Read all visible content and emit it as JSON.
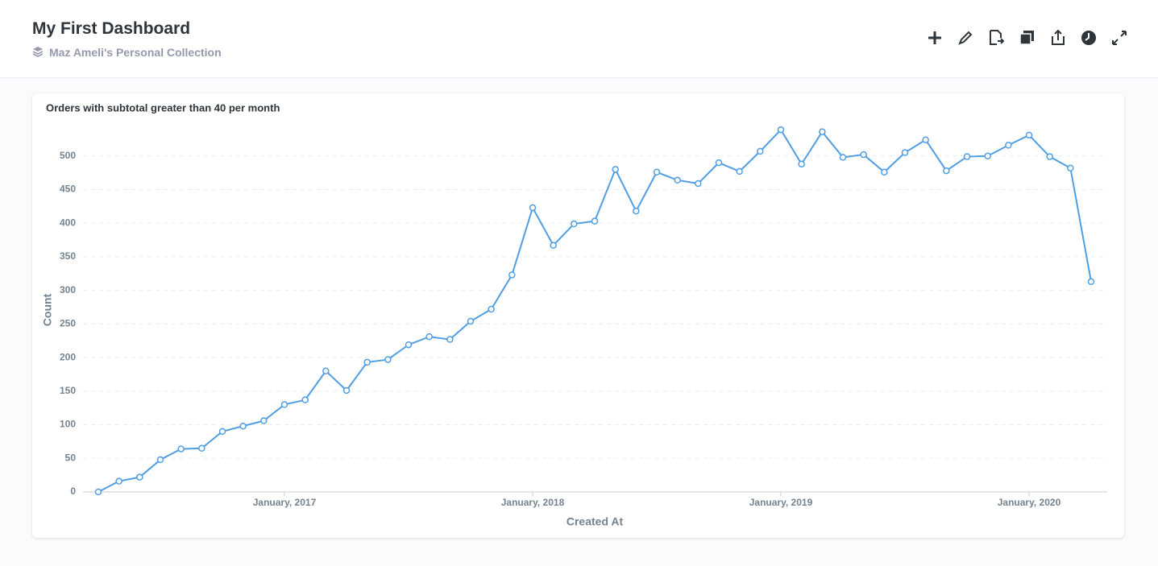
{
  "header": {
    "title": "My First Dashboard",
    "collection": "Maz Ameli's Personal Collection"
  },
  "chart_data": {
    "type": "line",
    "title": "Orders with subtotal greater than 40 per month",
    "x_label": "Created At",
    "y_label": "Count",
    "color": "#509ee3",
    "x": [
      "2016-04",
      "2016-05",
      "2016-06",
      "2016-07",
      "2016-08",
      "2016-09",
      "2016-10",
      "2016-11",
      "2016-12",
      "2017-01",
      "2017-02",
      "2017-03",
      "2017-04",
      "2017-05",
      "2017-06",
      "2017-07",
      "2017-08",
      "2017-09",
      "2017-10",
      "2017-11",
      "2017-12",
      "2018-01",
      "2018-02",
      "2018-03",
      "2018-04",
      "2018-05",
      "2018-06",
      "2018-07",
      "2018-08",
      "2018-09",
      "2018-10",
      "2018-11",
      "2018-12",
      "2019-01",
      "2019-02",
      "2019-03",
      "2019-04",
      "2019-05",
      "2019-06",
      "2019-07",
      "2019-08",
      "2019-09",
      "2019-10",
      "2019-11",
      "2019-12",
      "2020-01",
      "2020-02",
      "2020-03",
      "2020-04"
    ],
    "values": [
      0,
      16,
      22,
      48,
      64,
      65,
      90,
      98,
      106,
      130,
      137,
      180,
      151,
      193,
      197,
      219,
      231,
      227,
      254,
      272,
      323,
      423,
      367,
      399,
      403,
      480,
      418,
      476,
      464,
      459,
      490,
      477,
      507,
      539,
      488,
      536,
      498,
      502,
      476,
      505,
      524,
      478,
      499,
      500,
      516,
      531,
      499,
      482,
      313
    ],
    "xticks": [
      {
        "value": "2017-01",
        "label": "January, 2017"
      },
      {
        "value": "2018-01",
        "label": "January, 2018"
      },
      {
        "value": "2019-01",
        "label": "January, 2019"
      },
      {
        "value": "2020-01",
        "label": "January, 2020"
      }
    ],
    "ylim": [
      0,
      550
    ],
    "yticks": [
      0,
      50,
      100,
      150,
      200,
      250,
      300,
      350,
      400,
      450,
      500
    ],
    "grid": true
  }
}
